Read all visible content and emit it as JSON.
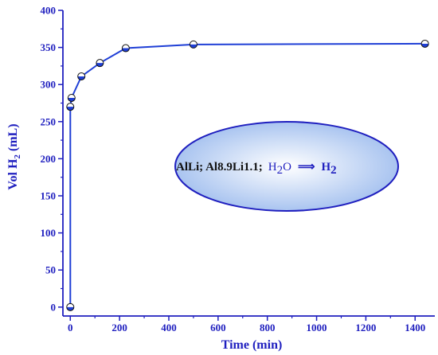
{
  "chart_data": {
    "type": "line",
    "xlabel": "Time (min)",
    "ylabel_main": "Vol H",
    "ylabel_sub": "2",
    "ylabel_unit": " (mL)",
    "xlim": [
      -30,
      1480
    ],
    "ylim": [
      -12,
      400
    ],
    "xticks": [
      0,
      200,
      400,
      600,
      800,
      1000,
      1200,
      1400
    ],
    "yticks": [
      0,
      50,
      100,
      150,
      200,
      250,
      300,
      350,
      400
    ],
    "grid": false,
    "series": [
      {
        "x": [
          0,
          0,
          5,
          45,
          120,
          225,
          500,
          1440
        ],
        "y": [
          0,
          270,
          282,
          311,
          329,
          349,
          354,
          355
        ]
      }
    ],
    "annotation": {
      "formula_text": "AlLi; Al8.9Li1.1;",
      "water_H": "H",
      "water_sub": "2",
      "water_O": "O",
      "arrow": "⟹",
      "product_H": "H",
      "product_sub": "2"
    },
    "colors": {
      "axis": "#1f1fbf",
      "line": "#1f3fd6",
      "marker_top": "#ffffff",
      "marker_bottom": "#1f3fd6",
      "ellipse_center": "#ffffff",
      "ellipse_edge": "#a9c4f0",
      "ellipse_stroke": "#1f1fbf"
    }
  }
}
